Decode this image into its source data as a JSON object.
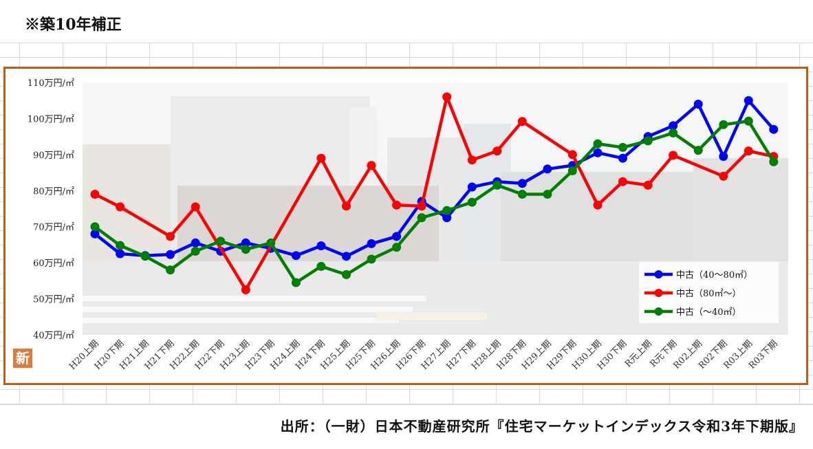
{
  "page": {
    "note": "※築10年補正",
    "source": "出所：（一財）日本不動産研究所『住宅マーケットインデックス令和3年下期版』"
  },
  "logo_text": "新",
  "chart_data": {
    "type": "line",
    "y_ticks": [
      "40万円/㎡",
      "50万円/㎡",
      "60万円/㎡",
      "70万円/㎡",
      "80万円/㎡",
      "90万円/㎡",
      "100万円/㎡",
      "110万円/㎡"
    ],
    "ylim": [
      40,
      110
    ],
    "categories": [
      "H20上期",
      "H20下期",
      "H21上期",
      "H21下期",
      "H22上期",
      "H22下期",
      "H23上期",
      "H23下期",
      "H24上期",
      "H24下期",
      "H25上期",
      "H25下期",
      "H26上期",
      "H26下期",
      "H27上期",
      "H27下期",
      "H28上期",
      "H28下期",
      "H29上期",
      "H29下期",
      "H30上期",
      "H30下期",
      "R元上期",
      "R元下期",
      "R02上期",
      "R02下期",
      "R03上期",
      "R03下期"
    ],
    "series": [
      {
        "name": "中古（40～80㎡）",
        "color": "#0000ff",
        "values": [
          68,
          62.5,
          62,
          62.3,
          65.5,
          63.2,
          65.5,
          64,
          62,
          64.7,
          61.8,
          65.3,
          67.3,
          77,
          72.5,
          81,
          82.5,
          82,
          86,
          87,
          90.5,
          89,
          95,
          98,
          104,
          89.5,
          105,
          97
        ]
      },
      {
        "name": "中古（80㎡～）",
        "color": "#ff0000",
        "values": [
          79,
          75.5,
          null,
          67.3,
          75.5,
          null,
          52.5,
          null,
          null,
          89,
          75.7,
          87,
          76,
          75.7,
          106,
          88.5,
          91,
          99.2,
          null,
          90,
          76,
          82.5,
          81.5,
          89.8,
          null,
          84,
          91,
          89.5
        ]
      },
      {
        "name": "中古（～40㎡）",
        "color": "#008000",
        "values": [
          70,
          64.8,
          61.8,
          58,
          63.2,
          66,
          63.7,
          65.5,
          54.5,
          59,
          56.7,
          61,
          64.3,
          72.5,
          74.5,
          76.8,
          81.5,
          79,
          79,
          85.5,
          93,
          92,
          93.8,
          96,
          91.2,
          98.3,
          99.3,
          88
        ]
      }
    ]
  }
}
